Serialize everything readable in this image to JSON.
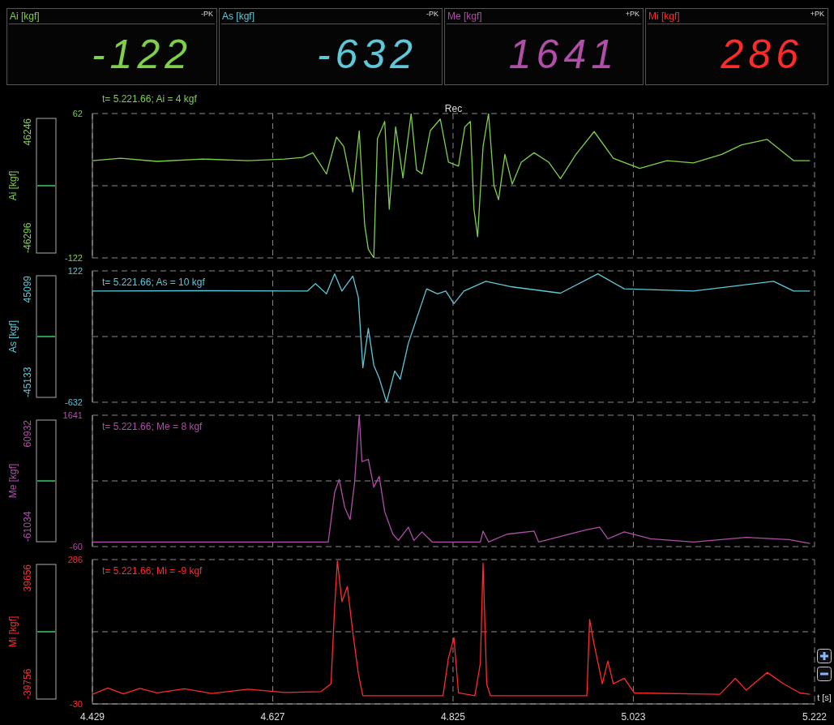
{
  "chart_data": [
    {
      "type": "other",
      "title": "Ai [kgf]",
      "color": "#7ed04a",
      "annotations": [
        "-PK",
        "-122"
      ]
    },
    {
      "type": "other",
      "title": "As [kgf]",
      "color": "#5cc8d8",
      "annotations": [
        "-PK",
        "-632"
      ]
    },
    {
      "type": "other",
      "title": "Me [kgf]",
      "color": "#b04ea8",
      "annotations": [
        "+PK",
        "1641"
      ]
    },
    {
      "type": "other",
      "title": "Mi [kgf]",
      "color": "#ff2a2a",
      "annotations": [
        "+PK",
        "286"
      ]
    },
    {
      "type": "line",
      "title": "Rec",
      "ylabel": "Ai [kgf]",
      "annotations": [
        "t= 5.221.66; Ai = 4 kgf",
        "46246",
        "-46296"
      ],
      "x": [
        4.429,
        4.46,
        4.5,
        4.55,
        4.6,
        4.64,
        4.66,
        4.671,
        4.686,
        4.697,
        4.705,
        4.715,
        4.722,
        4.728,
        4.732,
        4.738,
        4.742,
        4.75,
        4.755,
        4.762,
        4.77,
        4.779,
        4.785,
        4.791,
        4.8,
        4.811,
        4.82,
        4.831,
        4.838,
        4.844,
        4.848,
        4.852,
        4.858,
        4.864,
        4.87,
        4.875,
        4.882,
        4.89,
        4.9,
        4.914,
        4.93,
        4.943,
        4.96,
        4.98,
        5.001,
        5.03,
        5.06,
        5.089,
        5.12,
        5.142,
        5.17,
        5.199,
        5.217
      ],
      "series": [
        {
          "color": "#7ed04a",
          "values": [
            2,
            5,
            1,
            4,
            2,
            4,
            6,
            12,
            -15,
            32,
            20,
            -38,
            40,
            -80,
            -111,
            -122,
            30,
            52,
            -60,
            45,
            -20,
            62,
            -10,
            -15,
            40,
            55,
            0,
            -5,
            45,
            52,
            -60,
            -95,
            20,
            62,
            -30,
            -48,
            10,
            -28,
            0,
            12,
            0,
            -21,
            10,
            39,
            5,
            -8,
            2,
            -1,
            10,
            22,
            29,
            2,
            2
          ]
        }
      ],
      "xlim": [
        4.429,
        5.222
      ],
      "xticks": [
        4.429,
        4.627,
        4.825,
        5.023,
        5.222
      ],
      "ylim": [
        -122,
        62
      ],
      "yticks": [
        -122,
        {
          "value": -30,
          "label": null
        },
        62
      ],
      "grid": true,
      "tick_labels": "y"
    },
    {
      "type": "line",
      "ylabel": "As [kgf]",
      "annotations": [
        "t= 5.221.66; As = 10 kgf",
        "45099",
        "-45133"
      ],
      "x": [
        4.429,
        4.55,
        4.665,
        4.674,
        4.686,
        4.695,
        4.703,
        4.715,
        4.721,
        4.726,
        4.732,
        4.738,
        4.744,
        4.752,
        4.761,
        4.767,
        4.776,
        4.785,
        4.796,
        4.808,
        4.817,
        4.826,
        4.837,
        4.861,
        4.89,
        4.943,
        4.984,
        5.013,
        5.089,
        5.177,
        5.199,
        5.217
      ],
      "series": [
        {
          "color": "#5cc8d8",
          "values": [
            6,
            8,
            6,
            49,
            -10,
            105,
            6,
            92,
            -30,
            -434,
            -208,
            -420,
            -494,
            -632,
            -452,
            -500,
            -293,
            -152,
            19,
            -10,
            6,
            -66,
            6,
            62,
            30,
            -6,
            105,
            19,
            6,
            62,
            6,
            6
          ]
        }
      ],
      "xlim": [
        4.429,
        5.222
      ],
      "xticks": [
        4.429,
        4.627,
        4.825,
        5.023,
        5.222
      ],
      "ylim": [
        -632,
        122
      ],
      "yticks": [
        -632,
        {
          "value": -255,
          "label": null
        },
        122
      ],
      "grid": true,
      "tick_labels": "y"
    },
    {
      "type": "line",
      "ylabel": "Me [kgf]",
      "annotations": [
        "t= 5.221.66; Me = 8 kgf",
        "60932",
        "-61034"
      ],
      "x": [
        4.429,
        4.6,
        4.688,
        4.695,
        4.7,
        4.706,
        4.712,
        4.717,
        4.722,
        4.725,
        4.732,
        4.738,
        4.744,
        4.75,
        4.759,
        4.765,
        4.776,
        4.782,
        4.791,
        4.802,
        4.855,
        4.858,
        4.864,
        4.884,
        4.914,
        4.919,
        4.972,
        4.986,
        4.995,
        5.013,
        5.042,
        5.089,
        5.147,
        5.194,
        5.217
      ],
      "series": [
        {
          "color": "#b04ea8",
          "values": [
            0,
            0,
            0,
            640,
            810,
            450,
            290,
            780,
            1641,
            1040,
            1070,
            710,
            850,
            390,
            100,
            20,
            190,
            20,
            130,
            0,
            0,
            140,
            0,
            100,
            140,
            0,
            160,
            190,
            40,
            130,
            40,
            0,
            60,
            30,
            -20
          ]
        }
      ],
      "xlim": [
        4.429,
        5.222
      ],
      "xticks": [
        4.429,
        4.627,
        4.825,
        5.023,
        5.222
      ],
      "ylim": [
        -60,
        1641
      ],
      "yticks": [
        -60,
        {
          "value": 790.5,
          "label": null
        },
        1641
      ],
      "grid": true,
      "tick_labels": "y"
    },
    {
      "type": "line",
      "ylabel": "Mi [kgf]",
      "xlabel": "t [s]",
      "annotations": [
        "t= 5.221.66; Mi = -9 kgf",
        "39656",
        "-39756"
      ],
      "x": [
        4.429,
        4.446,
        4.463,
        4.481,
        4.5,
        4.53,
        4.56,
        4.6,
        4.64,
        4.68,
        4.691,
        4.695,
        4.698,
        4.703,
        4.709,
        4.715,
        4.721,
        4.726,
        4.814,
        4.82,
        4.826,
        4.831,
        4.849,
        4.855,
        4.858,
        4.862,
        4.866,
        4.972,
        4.975,
        4.98,
        4.989,
        4.995,
        5.001,
        5.013,
        5.024,
        5.118,
        5.135,
        5.147,
        5.17,
        5.188,
        5.206,
        5.217
      ],
      "series": [
        {
          "color": "#ff2a2a",
          "values": [
            -9,
            5,
            -8,
            4,
            -6,
            3,
            -7,
            2,
            -5,
            -3,
            14,
            182,
            283,
            194,
            227,
            126,
            37,
            -12,
            -12,
            71,
            115,
            -6,
            -12,
            59,
            278,
            14,
            -12,
            -12,
            155,
            100,
            14,
            64,
            14,
            26,
            -6,
            -9,
            26,
            0,
            39,
            14,
            -6,
            -9
          ]
        }
      ],
      "xlim": [
        4.429,
        5.222
      ],
      "xticks": [
        4.429,
        4.627,
        4.825,
        5.023,
        5.222
      ],
      "ylim": [
        -30,
        286
      ],
      "yticks": [
        -30,
        {
          "value": 128,
          "label": null
        },
        286
      ],
      "grid": true
    }
  ]
}
